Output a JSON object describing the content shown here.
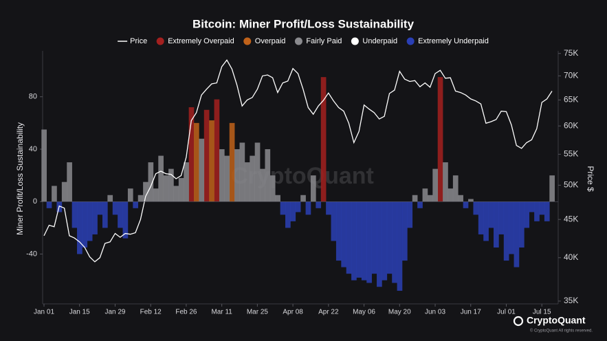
{
  "chart_data": {
    "type": "area",
    "title": "Bitcoin: Miner Profit/Loss Sustainability",
    "y_label": "Miner Profit/Loss Sustainability",
    "y2_label": "Price $",
    "watermark": "CryptoQuant",
    "branding": {
      "logo": "CryptoQuant",
      "notice": "© CryptoQuant All rights reserved."
    },
    "categories": [
      "Jan 01",
      "Jan 03",
      "Jan 05",
      "Jan 07",
      "Jan 09",
      "Jan 11",
      "Jan 13",
      "Jan 15",
      "Jan 17",
      "Jan 19",
      "Jan 21",
      "Jan 23",
      "Jan 25",
      "Jan 27",
      "Jan 29",
      "Jan 31",
      "Feb 02",
      "Feb 04",
      "Feb 06",
      "Feb 08",
      "Feb 10",
      "Feb 12",
      "Feb 14",
      "Feb 16",
      "Feb 18",
      "Feb 20",
      "Feb 22",
      "Feb 24",
      "Feb 26",
      "Feb 28",
      "Mar 01",
      "Mar 03",
      "Mar 05",
      "Mar 07",
      "Mar 09",
      "Mar 11",
      "Mar 13",
      "Mar 15",
      "Mar 17",
      "Mar 19",
      "Mar 21",
      "Mar 23",
      "Mar 25",
      "Mar 27",
      "Mar 29",
      "Mar 31",
      "Apr 02",
      "Apr 04",
      "Apr 06",
      "Apr 08",
      "Apr 10",
      "Apr 12",
      "Apr 14",
      "Apr 16",
      "Apr 18",
      "Apr 20",
      "Apr 22",
      "Apr 24",
      "Apr 26",
      "Apr 28",
      "Apr 30",
      "May 02",
      "May 04",
      "May 06",
      "May 08",
      "May 10",
      "May 12",
      "May 14",
      "May 16",
      "May 18",
      "May 20",
      "May 22",
      "May 24",
      "May 26",
      "May 28",
      "May 30",
      "Jun 01",
      "Jun 03",
      "Jun 05",
      "Jun 07",
      "Jun 09",
      "Jun 11",
      "Jun 13",
      "Jun 15",
      "Jun 17",
      "Jun 19",
      "Jun 21",
      "Jun 23",
      "Jun 25",
      "Jun 27",
      "Jun 29",
      "Jul 01",
      "Jul 03",
      "Jul 05",
      "Jul 07",
      "Jul 09",
      "Jul 11",
      "Jul 13",
      "Jul 15",
      "Jul 17",
      "Jul 19"
    ],
    "xticks": [
      "Jan 01",
      "Jan 15",
      "Jan 29",
      "Feb 12",
      "Feb 26",
      "Mar 11",
      "Mar 25",
      "Apr 08",
      "Apr 22",
      "May 06",
      "May 20",
      "Jun 03",
      "Jun 17",
      "Jul 01",
      "Jul 15"
    ],
    "ylim": [
      -78,
      115
    ],
    "yticks": [
      -40,
      0,
      40,
      80
    ],
    "y2lim": [
      34700,
      75600
    ],
    "y2_log": true,
    "y2ticks": [
      {
        "value": 35000,
        "label": "35K"
      },
      {
        "value": 40000,
        "label": "40K"
      },
      {
        "value": 45000,
        "label": "45K"
      },
      {
        "value": 50000,
        "label": "50K"
      },
      {
        "value": 55000,
        "label": "55K"
      },
      {
        "value": 60000,
        "label": "60K"
      },
      {
        "value": 65000,
        "label": "65K"
      },
      {
        "value": 70000,
        "label": "70K"
      },
      {
        "value": 75000,
        "label": "75K"
      }
    ],
    "legend": "top",
    "series": [
      {
        "name": "Price",
        "color": "#ffffff",
        "axis": "y2",
        "values": [
          42800,
          44200,
          44000,
          46900,
          46600,
          42800,
          42500,
          42000,
          41300,
          40100,
          39500,
          40000,
          41800,
          42000,
          43100,
          42600,
          43100,
          43000,
          43200,
          45000,
          48300,
          49800,
          51800,
          52200,
          51800,
          51700,
          51000,
          51500,
          54500,
          61000,
          62500,
          66000,
          67200,
          68300,
          68500,
          72000,
          73500,
          71500,
          68000,
          63800,
          65000,
          65500,
          67200,
          70000,
          70200,
          69600,
          66500,
          68500,
          68900,
          71600,
          70500,
          67200,
          63500,
          62200,
          63800,
          64900,
          66400,
          64800,
          63500,
          62800,
          60500,
          57000,
          59000,
          64000,
          63200,
          62500,
          61300,
          61800,
          66300,
          67000,
          71000,
          69300,
          68800,
          69000,
          67700,
          68500,
          67600,
          70500,
          71200,
          69500,
          69600,
          66800,
          66500,
          66000,
          65200,
          64800,
          64200,
          60500,
          60800,
          61200,
          62800,
          62700,
          60200,
          56500,
          56000,
          57000,
          57500,
          59500,
          64500,
          65200,
          66800
        ]
      },
      {
        "name": "Extremely Overpaid",
        "color": "#a3201f",
        "values": [
          null,
          null,
          null,
          null,
          null,
          null,
          null,
          null,
          null,
          null,
          null,
          null,
          null,
          null,
          null,
          null,
          null,
          null,
          null,
          null,
          null,
          null,
          null,
          null,
          null,
          null,
          null,
          null,
          null,
          72,
          null,
          null,
          70,
          null,
          78,
          null,
          null,
          null,
          null,
          null,
          null,
          null,
          null,
          null,
          null,
          null,
          null,
          null,
          null,
          null,
          null,
          null,
          null,
          null,
          null,
          95,
          null,
          null,
          null,
          null,
          null,
          null,
          null,
          null,
          null,
          null,
          null,
          null,
          null,
          null,
          null,
          null,
          null,
          null,
          null,
          null,
          null,
          null,
          95,
          null,
          null,
          null,
          null,
          null,
          null,
          null,
          null,
          null,
          null,
          null,
          null,
          null,
          null,
          null,
          null,
          null,
          null,
          null,
          null,
          null,
          null
        ]
      },
      {
        "name": "Overpaid",
        "color": "#c0621a",
        "values": [
          null,
          null,
          null,
          null,
          null,
          null,
          null,
          null,
          null,
          null,
          null,
          null,
          null,
          null,
          null,
          null,
          null,
          null,
          null,
          null,
          null,
          null,
          null,
          null,
          null,
          null,
          null,
          null,
          null,
          null,
          60,
          null,
          null,
          62,
          null,
          null,
          null,
          60,
          null,
          null,
          null,
          null,
          null,
          null,
          null,
          null,
          null,
          null,
          null,
          null,
          null,
          null,
          null,
          null,
          null,
          null,
          null,
          null,
          null,
          null,
          null,
          null,
          null,
          null,
          null,
          null,
          null,
          null,
          null,
          null,
          null,
          null,
          null,
          null,
          null,
          null,
          null,
          null,
          null,
          null,
          null,
          null,
          null,
          null,
          null,
          null,
          null,
          null,
          null,
          null,
          null,
          null,
          null,
          null,
          null,
          null,
          null,
          null,
          null,
          null,
          null
        ]
      },
      {
        "name": "Fairly Paid",
        "color": "#8a8a8e",
        "values": [
          55,
          null,
          12,
          null,
          15,
          30,
          null,
          null,
          null,
          null,
          null,
          null,
          null,
          5,
          null,
          null,
          null,
          10,
          null,
          5,
          15,
          30,
          10,
          35,
          20,
          25,
          12,
          18,
          30,
          null,
          null,
          48,
          null,
          null,
          null,
          40,
          35,
          null,
          40,
          45,
          30,
          35,
          45,
          25,
          40,
          20,
          5,
          null,
          null,
          null,
          null,
          5,
          null,
          20,
          null,
          null,
          null,
          null,
          null,
          null,
          null,
          null,
          null,
          null,
          null,
          null,
          null,
          null,
          null,
          null,
          null,
          null,
          null,
          5,
          null,
          10,
          5,
          25,
          null,
          30,
          10,
          20,
          5,
          null,
          2,
          null,
          null,
          null,
          null,
          null,
          null,
          null,
          null,
          null,
          null,
          null,
          null,
          null,
          null,
          null,
          20
        ]
      },
      {
        "name": "Underpaid",
        "color": "#ffffff",
        "values": [
          null,
          null,
          null,
          null,
          null,
          null,
          null,
          null,
          null,
          null,
          null,
          null,
          null,
          null,
          null,
          null,
          null,
          null,
          null,
          null,
          null,
          null,
          null,
          null,
          null,
          null,
          null,
          null,
          null,
          null,
          null,
          null,
          null,
          null,
          null,
          null,
          null,
          null,
          null,
          null,
          null,
          null,
          null,
          null,
          null,
          null,
          null,
          null,
          null,
          null,
          null,
          null,
          null,
          null,
          null,
          null,
          null,
          null,
          null,
          null,
          null,
          null,
          null,
          null,
          null,
          null,
          null,
          null,
          null,
          null,
          null,
          null,
          null,
          null,
          null,
          null,
          null,
          null,
          null,
          null,
          null,
          null,
          null,
          null,
          null,
          null,
          null,
          null,
          null,
          null,
          null,
          null,
          null,
          null,
          null,
          null,
          null,
          null,
          null,
          null,
          null
        ]
      },
      {
        "name": "Extremely Underpaid",
        "color": "#2a3fb5",
        "values": [
          null,
          -5,
          null,
          -8,
          null,
          null,
          -20,
          -40,
          -35,
          -30,
          -25,
          -10,
          -20,
          null,
          -10,
          -20,
          -28,
          null,
          -5,
          null,
          null,
          null,
          null,
          null,
          null,
          null,
          null,
          null,
          null,
          null,
          null,
          null,
          null,
          null,
          null,
          null,
          null,
          null,
          null,
          null,
          null,
          null,
          null,
          null,
          null,
          null,
          null,
          -10,
          -20,
          -15,
          -8,
          null,
          -10,
          null,
          -5,
          null,
          -10,
          -30,
          -45,
          -50,
          -55,
          -60,
          -58,
          -60,
          -62,
          -55,
          -65,
          -60,
          -55,
          -62,
          -68,
          -45,
          -20,
          null,
          -5,
          null,
          null,
          null,
          null,
          null,
          null,
          null,
          null,
          -5,
          null,
          -10,
          -25,
          -30,
          -20,
          -35,
          -25,
          -45,
          -40,
          -50,
          -35,
          -20,
          -8,
          -15,
          -10,
          -15,
          null
        ]
      }
    ]
  }
}
